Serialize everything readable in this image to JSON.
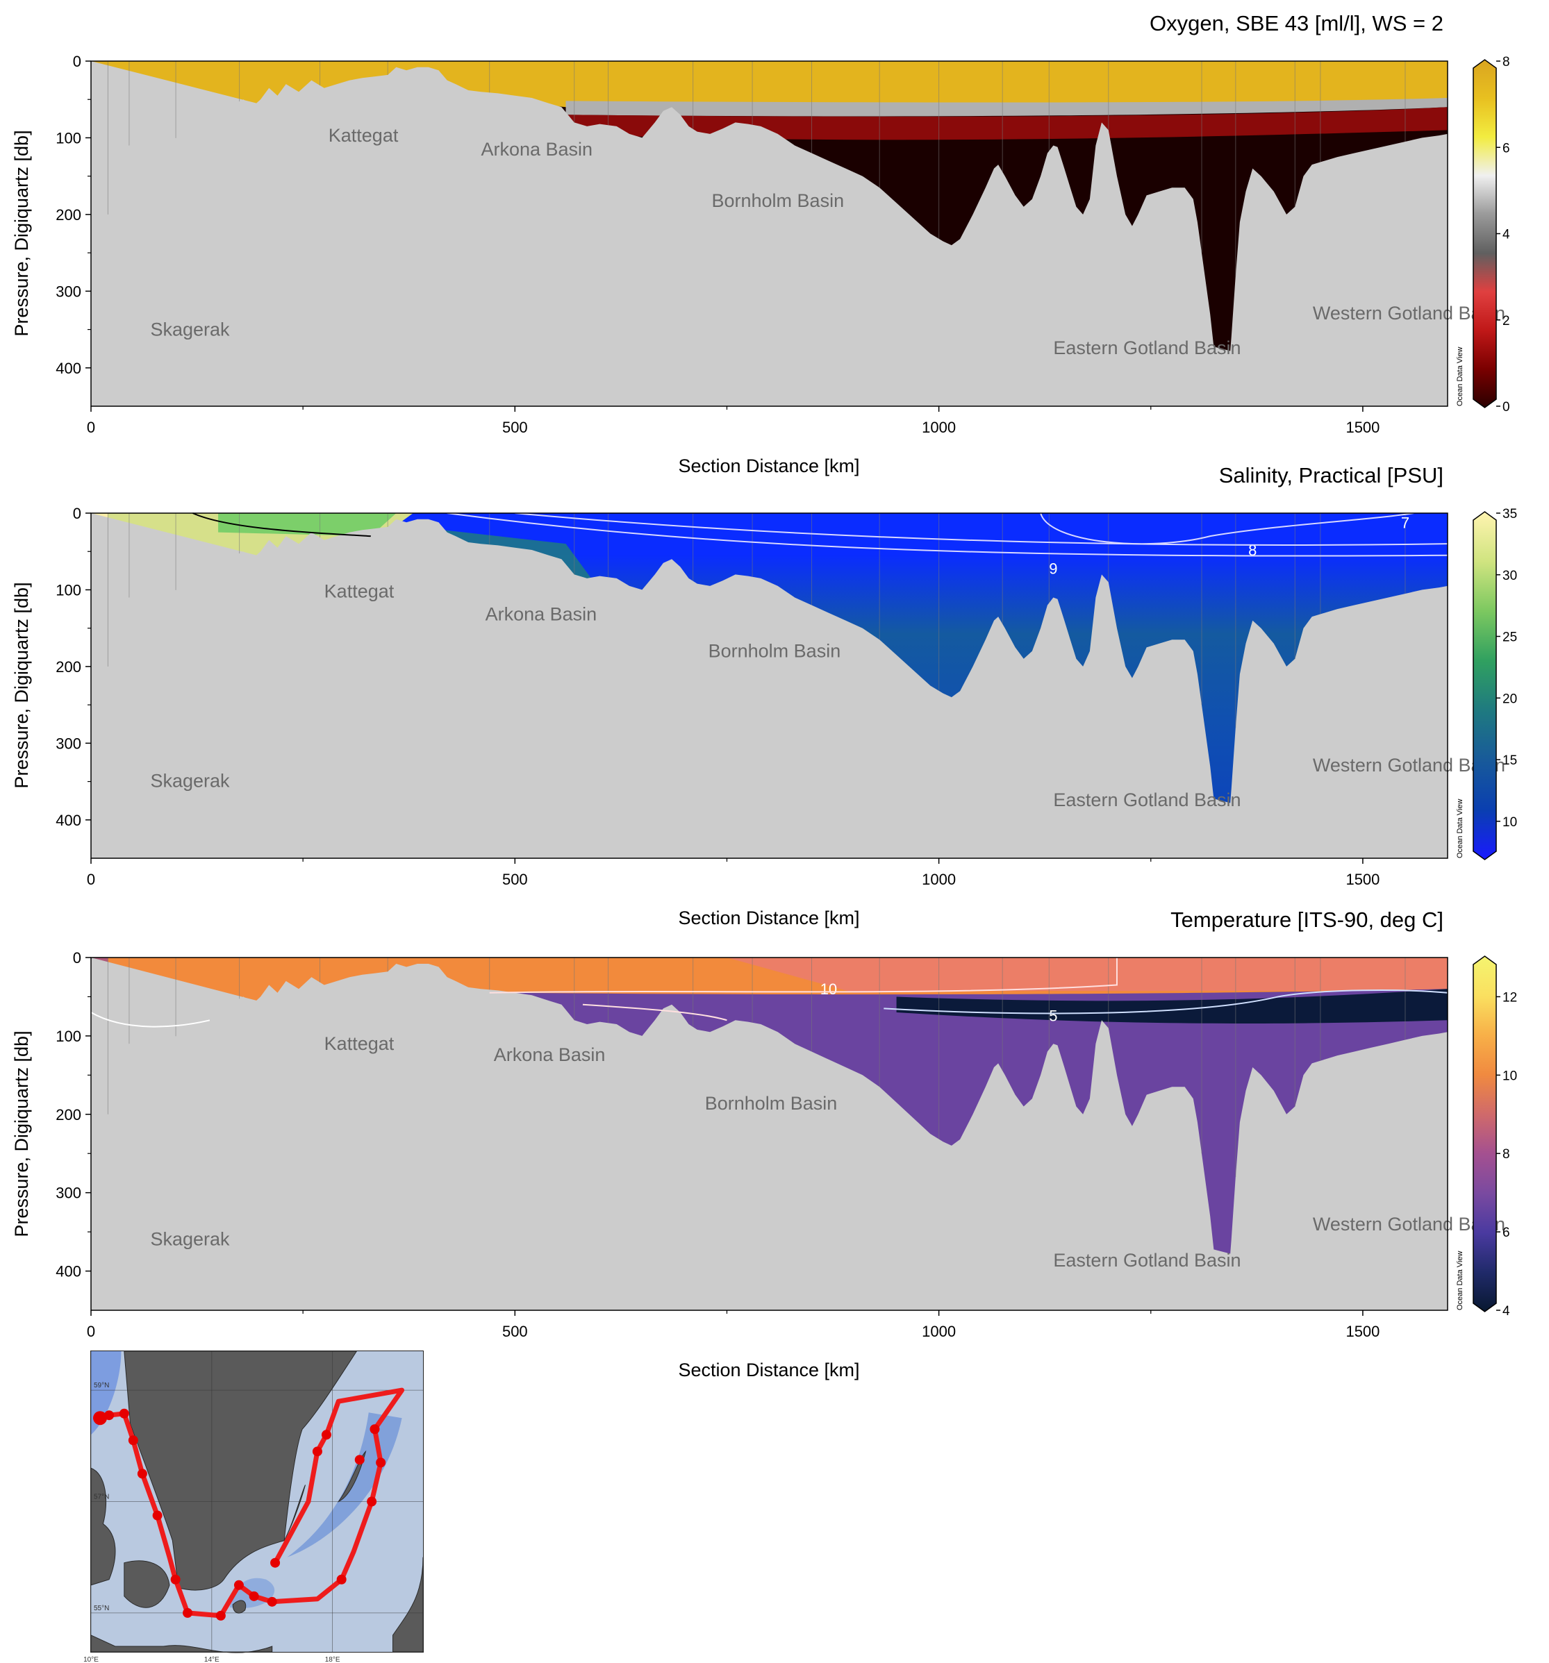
{
  "chart_data": [
    {
      "type": "heatmap",
      "title": "Oxygen, SBE 43 [ml/l], WS = 2",
      "xlabel": "Section Distance [km]",
      "ylabel": "Pressure, Digiquartz [db]",
      "xlim": [
        0,
        1600
      ],
      "ylim": [
        450,
        0
      ],
      "xticks": [
        "0",
        "500",
        "1000",
        "1500"
      ],
      "yticks": [
        "0",
        "100",
        "200",
        "300",
        "400"
      ],
      "colorbar": {
        "min": 0,
        "max": 8,
        "ticks": [
          "0",
          "2",
          "4",
          "6",
          "8"
        ],
        "colors": [
          "#2a0000",
          "#7a0000",
          "#c01818",
          "#e04040",
          "#606060",
          "#9a9a9a",
          "#f0f0f0",
          "#f2ec40",
          "#e8c020",
          "#daa520"
        ]
      },
      "watermark": "Ocean Data View",
      "contours": [],
      "basin_labels": [
        {
          "text": "Kattegat",
          "x": 280,
          "y": 105
        },
        {
          "text": "Arkona Basin",
          "x": 460,
          "y": 123
        },
        {
          "text": "Bornholm Basin",
          "x": 732,
          "y": 190
        },
        {
          "text": "Skagerak",
          "x": 70,
          "y": 358
        },
        {
          "text": "Eastern Gotland Basin",
          "x": 1135,
          "y": 382
        },
        {
          "text": "Western Gotland Basin",
          "x": 1441,
          "y": 337
        }
      ]
    },
    {
      "type": "heatmap",
      "title": "Salinity, Practical [PSU]",
      "xlabel": "Section Distance [km]",
      "ylabel": "Pressure, Digiquartz [db]",
      "xlim": [
        0,
        1600
      ],
      "ylim": [
        450,
        0
      ],
      "xticks": [
        "0",
        "500",
        "1000",
        "1500"
      ],
      "yticks": [
        "0",
        "100",
        "200",
        "300",
        "400"
      ],
      "colorbar": {
        "min": 7,
        "max": 35,
        "ticks": [
          "10",
          "15",
          "20",
          "25",
          "30",
          "35"
        ],
        "colors": [
          "#1a1aff",
          "#0a3fb0",
          "#185a9a",
          "#1f7a80",
          "#30a060",
          "#7cc860",
          "#d0e480",
          "#fff4b0"
        ]
      },
      "watermark": "Ocean Data View",
      "contours": [
        {
          "label": "7",
          "x": 1550,
          "y": 12
        },
        {
          "label": "8",
          "x": 1370,
          "y": 48
        },
        {
          "label": "9",
          "x": 1135,
          "y": 72
        }
      ],
      "basin_labels": [
        {
          "text": "Kattegat",
          "x": 275,
          "y": 110
        },
        {
          "text": "Arkona Basin",
          "x": 465,
          "y": 140
        },
        {
          "text": "Bornholm Basin",
          "x": 728,
          "y": 188
        },
        {
          "text": "Skagerak",
          "x": 70,
          "y": 357
        },
        {
          "text": "Eastern Gotland Basin",
          "x": 1135,
          "y": 382
        },
        {
          "text": "Western Gotland Basin",
          "x": 1441,
          "y": 337
        }
      ]
    },
    {
      "type": "heatmap",
      "title": "Temperature [ITS-90, deg C]",
      "xlabel": "Section Distance [km]",
      "ylabel": "Pressure, Digiquartz [db]",
      "xlim": [
        0,
        1600
      ],
      "ylim": [
        450,
        0
      ],
      "xticks": [
        "0",
        "500",
        "1000",
        "1500"
      ],
      "yticks": [
        "0",
        "100",
        "200",
        "300",
        "400"
      ],
      "colorbar": {
        "min": 4,
        "max": 13,
        "ticks": [
          "4",
          "6",
          "8",
          "10",
          "12"
        ],
        "colors": [
          "#081830",
          "#202a6a",
          "#4a3aa0",
          "#7a4aa0",
          "#a45090",
          "#d06a6a",
          "#f08a40",
          "#f8b048",
          "#fae060",
          "#f4f470"
        ]
      },
      "watermark": "Ocean Data View",
      "contours": [
        {
          "label": "10",
          "x": 870,
          "y": 40
        },
        {
          "label": "5",
          "x": 1135,
          "y": 74
        }
      ],
      "basin_labels": [
        {
          "text": "Kattegat",
          "x": 275,
          "y": 118
        },
        {
          "text": "Arkona Basin",
          "x": 475,
          "y": 132
        },
        {
          "text": "Bornholm Basin",
          "x": 724,
          "y": 194
        },
        {
          "text": "Skagerak",
          "x": 70,
          "y": 367
        },
        {
          "text": "Eastern Gotland Basin",
          "x": 1135,
          "y": 394
        },
        {
          "text": "Western Gotland Basin",
          "x": 1441,
          "y": 348
        }
      ]
    },
    {
      "type": "scatter",
      "xticks": [
        "10°E",
        "14°E",
        "18°E"
      ],
      "yticks": [
        "59°N",
        "57°N",
        "55°N"
      ],
      "xlim": [
        10,
        21
      ],
      "ylim": [
        54.3,
        59.7
      ],
      "track_color": "#ee1c1c",
      "station_color": "#e60000",
      "track": [
        {
          "lon": 10.3,
          "lat": 58.5
        },
        {
          "lon": 10.6,
          "lat": 58.55
        },
        {
          "lon": 11.1,
          "lat": 58.58
        },
        {
          "lon": 11.4,
          "lat": 58.1
        },
        {
          "lon": 11.7,
          "lat": 57.5
        },
        {
          "lon": 12.2,
          "lat": 56.75
        },
        {
          "lon": 12.6,
          "lat": 56.0
        },
        {
          "lon": 12.8,
          "lat": 55.6
        },
        {
          "lon": 13.2,
          "lat": 55.0
        },
        {
          "lon": 14.3,
          "lat": 54.95
        },
        {
          "lon": 14.9,
          "lat": 55.5
        },
        {
          "lon": 15.4,
          "lat": 55.3
        },
        {
          "lon": 16.0,
          "lat": 55.2
        },
        {
          "lon": 17.5,
          "lat": 55.25
        },
        {
          "lon": 18.3,
          "lat": 55.6
        },
        {
          "lon": 18.7,
          "lat": 56.1
        },
        {
          "lon": 19.3,
          "lat": 57.0
        },
        {
          "lon": 19.6,
          "lat": 57.7
        },
        {
          "lon": 19.4,
          "lat": 58.3
        },
        {
          "lon": 20.3,
          "lat": 59.0
        },
        {
          "lon": 18.2,
          "lat": 58.8
        },
        {
          "lon": 17.8,
          "lat": 58.2
        },
        {
          "lon": 17.5,
          "lat": 57.9
        },
        {
          "lon": 17.2,
          "lat": 57.0
        },
        {
          "lon": 16.1,
          "lat": 55.9
        }
      ],
      "stations": [
        {
          "lon": 10.3,
          "lat": 58.5
        },
        {
          "lon": 10.6,
          "lat": 58.55
        },
        {
          "lon": 11.1,
          "lat": 58.58
        },
        {
          "lon": 11.4,
          "lat": 58.1
        },
        {
          "lon": 11.7,
          "lat": 57.5
        },
        {
          "lon": 12.2,
          "lat": 56.75
        },
        {
          "lon": 12.8,
          "lat": 55.6
        },
        {
          "lon": 13.2,
          "lat": 55.0
        },
        {
          "lon": 14.3,
          "lat": 54.95
        },
        {
          "lon": 14.9,
          "lat": 55.5
        },
        {
          "lon": 15.4,
          "lat": 55.3
        },
        {
          "lon": 16.0,
          "lat": 55.2
        },
        {
          "lon": 18.3,
          "lat": 55.6
        },
        {
          "lon": 19.3,
          "lat": 57.0
        },
        {
          "lon": 19.6,
          "lat": 57.7
        },
        {
          "lon": 19.4,
          "lat": 58.3
        },
        {
          "lon": 17.8,
          "lat": 58.2
        },
        {
          "lon": 17.5,
          "lat": 57.9
        },
        {
          "lon": 16.1,
          "lat": 55.9
        },
        {
          "lon": 18.9,
          "lat": 57.75
        }
      ]
    }
  ]
}
